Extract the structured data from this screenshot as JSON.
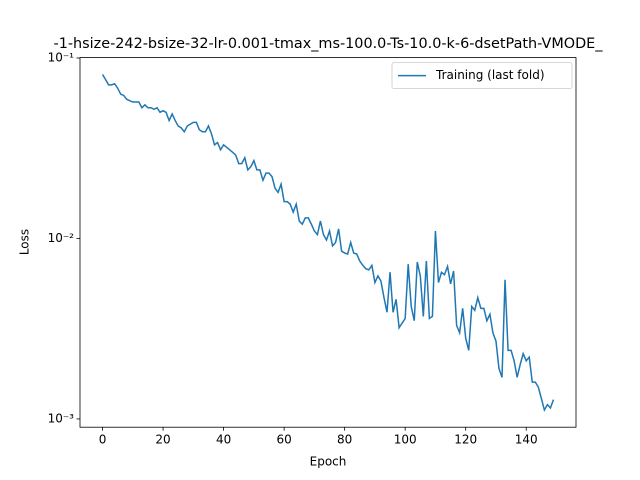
{
  "chart_data": {
    "type": "line",
    "title": "-1-hsize-242-bsize-32-lr-0.001-tmax_ms-100.0-Ts-10.0-k-6-dsetPath-VMODE_",
    "x_label": "Epoch",
    "y_label": "Loss",
    "y_scale": "log",
    "legend_position": "upper right",
    "xlim": [
      -7.45,
      156.45
    ],
    "ylim": [
      0.0009,
      0.1005
    ],
    "xticks": [
      0,
      20,
      40,
      60,
      80,
      100,
      120,
      140
    ],
    "yticks": [
      {
        "value": 0.001,
        "label": "10⁻³"
      },
      {
        "value": 0.01,
        "label": "10⁻²"
      },
      {
        "value": 0.1,
        "label": "10⁻¹"
      }
    ],
    "x": [
      0,
      1,
      2,
      3,
      4,
      5,
      6,
      7,
      8,
      9,
      10,
      11,
      12,
      13,
      14,
      15,
      16,
      17,
      18,
      19,
      20,
      21,
      22,
      23,
      24,
      25,
      26,
      27,
      28,
      29,
      30,
      31,
      32,
      33,
      34,
      35,
      36,
      37,
      38,
      39,
      40,
      41,
      42,
      43,
      44,
      45,
      46,
      47,
      48,
      49,
      50,
      51,
      52,
      53,
      54,
      55,
      56,
      57,
      58,
      59,
      60,
      61,
      62,
      63,
      64,
      65,
      66,
      67,
      68,
      69,
      70,
      71,
      72,
      73,
      74,
      75,
      76,
      77,
      78,
      79,
      80,
      81,
      82,
      83,
      84,
      85,
      86,
      87,
      88,
      89,
      90,
      91,
      92,
      93,
      94,
      95,
      96,
      97,
      98,
      99,
      100,
      101,
      102,
      103,
      104,
      105,
      106,
      107,
      108,
      109,
      110,
      111,
      112,
      113,
      114,
      115,
      116,
      117,
      118,
      119,
      120,
      121,
      122,
      123,
      124,
      125,
      126,
      127,
      128,
      129,
      130,
      131,
      132,
      133,
      134,
      135,
      136,
      137,
      138,
      139,
      140,
      141,
      142,
      143,
      144,
      145,
      146,
      147,
      148,
      149
    ],
    "series": [
      {
        "name": "Training (last fold)",
        "color": "#1f77b4",
        "values": [
          0.081,
          0.076,
          0.071,
          0.071,
          0.072,
          0.068,
          0.063,
          0.062,
          0.059,
          0.058,
          0.057,
          0.057,
          0.057,
          0.053,
          0.055,
          0.053,
          0.053,
          0.052,
          0.053,
          0.05,
          0.051,
          0.05,
          0.045,
          0.049,
          0.045,
          0.042,
          0.041,
          0.039,
          0.042,
          0.043,
          0.044,
          0.044,
          0.04,
          0.039,
          0.039,
          0.042,
          0.038,
          0.033,
          0.034,
          0.031,
          0.033,
          0.032,
          0.031,
          0.03,
          0.029,
          0.026,
          0.026,
          0.028,
          0.024,
          0.025,
          0.027,
          0.024,
          0.024,
          0.021,
          0.023,
          0.023,
          0.022,
          0.019,
          0.018,
          0.02,
          0.016,
          0.016,
          0.0155,
          0.014,
          0.0155,
          0.0125,
          0.012,
          0.013,
          0.013,
          0.012,
          0.011,
          0.0105,
          0.0125,
          0.0105,
          0.0098,
          0.011,
          0.0091,
          0.0095,
          0.0113,
          0.0085,
          0.0083,
          0.0082,
          0.0095,
          0.0083,
          0.0082,
          0.0075,
          0.0071,
          0.0068,
          0.0067,
          0.0071,
          0.0057,
          0.0062,
          0.0058,
          0.0047,
          0.0039,
          0.0065,
          0.0039,
          0.0046,
          0.0032,
          0.0034,
          0.0036,
          0.0072,
          0.0042,
          0.0035,
          0.0074,
          0.0062,
          0.0037,
          0.0075,
          0.0036,
          0.0037,
          0.011,
          0.0057,
          0.0065,
          0.0063,
          0.007,
          0.0056,
          0.0066,
          0.0033,
          0.003,
          0.0041,
          0.0028,
          0.0024,
          0.0042,
          0.004,
          0.0047,
          0.0041,
          0.0041,
          0.0035,
          0.0038,
          0.003,
          0.0027,
          0.0019,
          0.0017,
          0.0059,
          0.0024,
          0.0024,
          0.0021,
          0.0017,
          0.002,
          0.0023,
          0.0021,
          0.0022,
          0.0016,
          0.0016,
          0.0015,
          0.0013,
          0.00112,
          0.0012,
          0.00115,
          0.00128
        ]
      }
    ]
  }
}
